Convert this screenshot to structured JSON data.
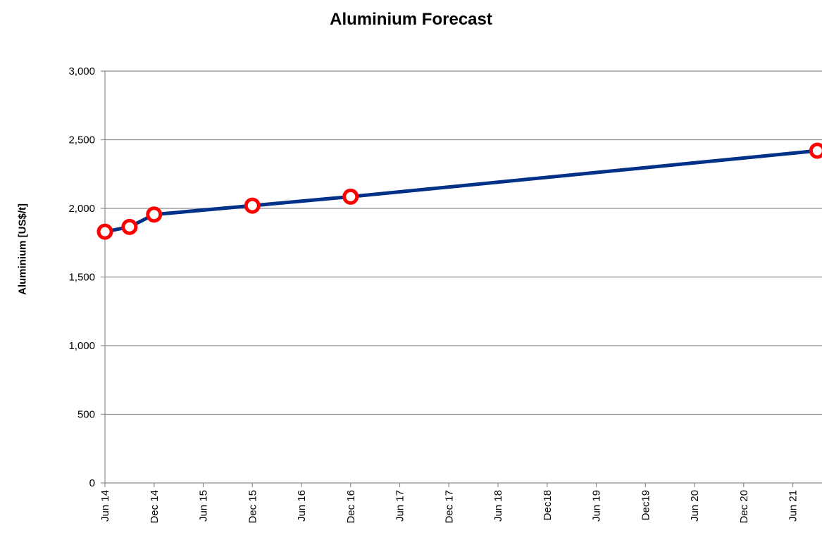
{
  "chart_data": {
    "type": "line",
    "title": "Aluminium Forecast",
    "xlabel": "",
    "ylabel": "Aluminium [US$/t]",
    "x_tick_labels": [
      "Jun 14",
      "Dec 14",
      "Jun 15",
      "Dec 15",
      "Jun 16",
      "Dec 16",
      "Jun 17",
      "Dec 17",
      "Jun 18",
      "Dec18",
      "Jun 19",
      "Dec19",
      "Jun 20",
      "Dec 20",
      "Jun 21"
    ],
    "y_ticks": [
      {
        "value": 0,
        "label": "0"
      },
      {
        "value": 500,
        "label": "500"
      },
      {
        "value": 1000,
        "label": "1,000"
      },
      {
        "value": 1500,
        "label": "1,500"
      },
      {
        "value": 2000,
        "label": "2,000"
      },
      {
        "value": 2500,
        "label": "2,500"
      },
      {
        "value": 3000,
        "label": "3,000"
      }
    ],
    "ylim": [
      0,
      3000
    ],
    "xlim": [
      "2014-06",
      "2021-09"
    ],
    "grid": "horizontal",
    "series": [
      {
        "color": "#003087",
        "marker_color": "#ff0000",
        "points": [
          {
            "x": "2014-06",
            "y": 1830
          },
          {
            "x": "2014-09",
            "y": 1865
          },
          {
            "x": "2014-12",
            "y": 1955
          },
          {
            "x": "2015-12",
            "y": 2020
          },
          {
            "x": "2016-12",
            "y": 2085
          },
          {
            "x": "2021-09",
            "y": 2420
          }
        ]
      }
    ]
  }
}
